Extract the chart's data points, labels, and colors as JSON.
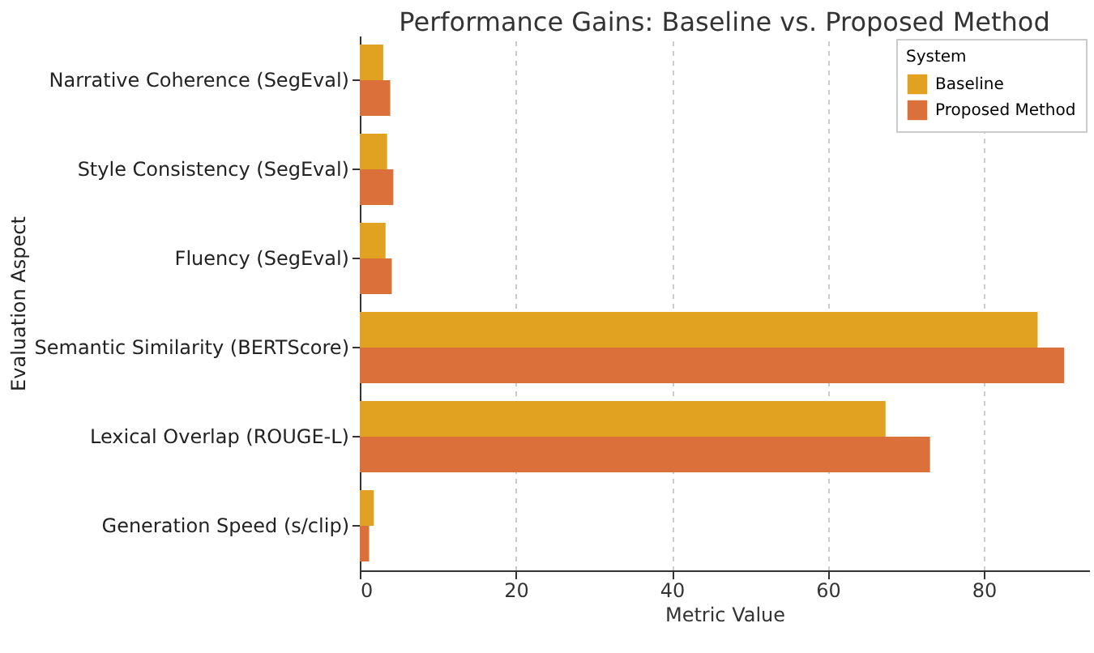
{
  "chart_data": {
    "type": "bar",
    "orientation": "horizontal",
    "title": "Performance Gains: Baseline vs. Proposed Method",
    "xlabel": "Metric Value",
    "ylabel": "Evaluation Aspect",
    "legend_title": "System",
    "categories": [
      "Narrative Coherence (SegEval)",
      "Style Consistency (SegEval)",
      "Fluency (SegEval)",
      "Semantic Similarity (BERTScore)",
      "Lexical Overlap (ROUGE-L)",
      "Generation Speed (s/clip)"
    ],
    "series": [
      {
        "name": "Baseline",
        "color": "#e0a220",
        "values": [
          3.0,
          3.5,
          3.3,
          86.9,
          67.4,
          1.8
        ]
      },
      {
        "name": "Proposed Method",
        "color": "#dc703a",
        "values": [
          3.9,
          4.3,
          4.1,
          90.3,
          73.1,
          1.2
        ]
      }
    ],
    "xlim": [
      0,
      93.5
    ],
    "xticks": [
      0,
      20,
      40,
      60,
      80
    ],
    "grid": "x",
    "legend": "top right"
  }
}
